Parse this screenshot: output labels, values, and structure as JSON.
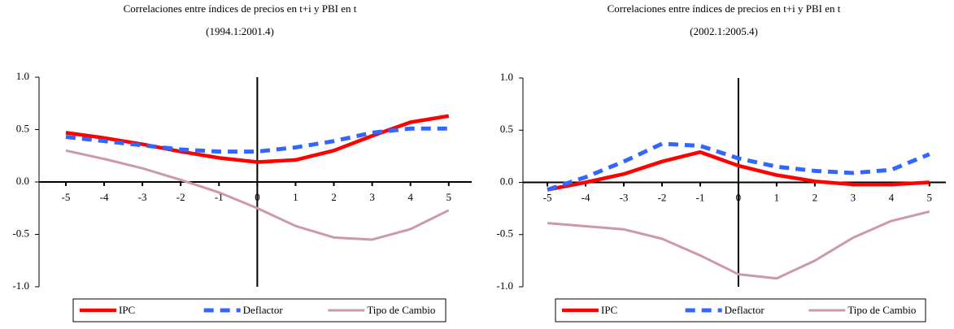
{
  "chart_data": [
    {
      "type": "line",
      "title": "Correlaciones entre índices de precios en t+i y  PBI en t",
      "subtitle": "(1994.1:2001.4)",
      "x": [
        -5,
        -4,
        -3,
        -2,
        -1,
        0,
        1,
        2,
        3,
        4,
        5
      ],
      "xlim": [
        -5.7,
        5.6
      ],
      "xticks": [
        -5,
        -4,
        -3,
        -2,
        -1,
        0,
        1,
        2,
        3,
        4,
        5
      ],
      "ylim": [
        -1,
        1
      ],
      "yticks": [
        {
          "value": -1,
          "label": "-1.0"
        },
        -0.5,
        {
          "value": 0,
          "label": "0.0"
        },
        0.5,
        {
          "value": 1,
          "label": "1.0"
        }
      ],
      "series": [
        {
          "name": "IPC",
          "color": "#ff0000",
          "values": [
            0.47,
            0.42,
            0.36,
            0.29,
            0.23,
            0.19,
            0.21,
            0.3,
            0.44,
            0.57,
            0.63
          ]
        },
        {
          "name": "Deflactor",
          "color": "#3366ff",
          "dashed": true,
          "values": [
            0.43,
            0.39,
            0.35,
            0.31,
            0.29,
            0.29,
            0.33,
            0.39,
            0.47,
            0.51,
            0.51
          ]
        },
        {
          "name": "Tipo de Cambio",
          "color": "#cc99aa",
          "values": [
            0.3,
            0.22,
            0.13,
            0.02,
            -0.1,
            -0.25,
            -0.42,
            -0.53,
            -0.55,
            -0.45,
            -0.27
          ]
        }
      ]
    },
    {
      "type": "line",
      "title": "Correlaciones entre índices de precios en t+i y  PBI en t",
      "subtitle": "(2002.1:2005.4)",
      "x": [
        -5,
        -4,
        -3,
        -2,
        -1,
        0,
        1,
        2,
        3,
        4,
        5
      ],
      "xlim": [
        -5.64,
        5.43
      ],
      "xticks": [
        -5,
        -4,
        -3,
        -2,
        -1,
        0,
        1,
        2,
        3,
        4,
        5
      ],
      "ylim": [
        -1,
        1
      ],
      "yticks": [
        {
          "value": -1,
          "label": "-1.0"
        },
        -0.5,
        {
          "value": 0,
          "label": "0.0"
        },
        0.5,
        {
          "value": 1,
          "label": "1.0"
        }
      ],
      "series": [
        {
          "name": "IPC",
          "color": "#ff0000",
          "values": [
            -0.07,
            0.0,
            0.08,
            0.2,
            0.29,
            0.16,
            0.07,
            0.01,
            -0.02,
            -0.02,
            0.0
          ]
        },
        {
          "name": "Deflactor",
          "color": "#3366ff",
          "dashed": true,
          "values": [
            -0.07,
            0.05,
            0.2,
            0.37,
            0.35,
            0.23,
            0.15,
            0.11,
            0.09,
            0.12,
            0.27
          ]
        },
        {
          "name": "Tipo de Cambio",
          "color": "#cc99aa",
          "values": [
            -0.39,
            -0.42,
            -0.45,
            -0.54,
            -0.7,
            -0.88,
            -0.92,
            -0.75,
            -0.53,
            -0.37,
            -0.28
          ]
        }
      ]
    }
  ]
}
